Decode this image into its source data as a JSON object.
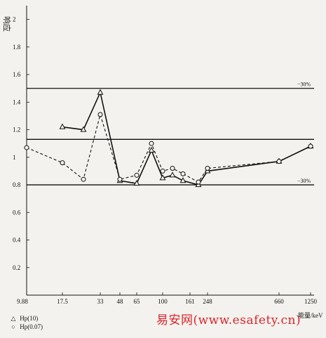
{
  "chart_data": {
    "type": "line",
    "ylabel": "响应",
    "xlabel": "能量/keV",
    "x_ticks": [
      "9.88",
      "17.5",
      "33",
      "48",
      "65",
      "100",
      "161",
      "248",
      "660",
      "1250"
    ],
    "ylim": [
      0,
      2.1
    ],
    "y_ticks": [
      "0.2",
      "0.4",
      "0.6",
      "0.8",
      "1",
      "1.2",
      "1.4",
      "1.6",
      "1.8",
      "2"
    ],
    "reference_lines": [
      {
        "y": 1.5,
        "label": "−30%"
      },
      {
        "y": 1.13,
        "label": ""
      },
      {
        "y": 0.8,
        "label": "−30%"
      }
    ],
    "series": [
      {
        "name": "Hp(10)",
        "marker": "triangle",
        "style": "solid",
        "x": [
          "17.5",
          "26",
          "33",
          "48",
          "65",
          "88",
          "100",
          "115",
          "140",
          "200",
          "248",
          "660",
          "1250"
        ],
        "y": [
          1.22,
          1.2,
          1.47,
          0.83,
          0.81,
          1.05,
          0.85,
          0.87,
          0.83,
          0.8,
          0.9,
          0.97,
          1.08
        ]
      },
      {
        "name": "Hp(0.07)",
        "marker": "circle",
        "style": "dashed",
        "x": [
          "9.88",
          "17.5",
          "26",
          "33",
          "48",
          "65",
          "88",
          "100",
          "115",
          "140",
          "200",
          "248",
          "660",
          "1250"
        ],
        "y": [
          1.07,
          0.96,
          0.84,
          1.31,
          0.84,
          0.87,
          1.1,
          0.9,
          0.92,
          0.88,
          0.82,
          0.92,
          0.97,
          1.08
        ]
      }
    ]
  },
  "legend": {
    "items": [
      {
        "symbol": "△",
        "label": "Hp(10)"
      },
      {
        "symbol": "○",
        "label": "Hp(0.07)"
      }
    ]
  },
  "watermark": "易安网(www.esafety.cn)"
}
